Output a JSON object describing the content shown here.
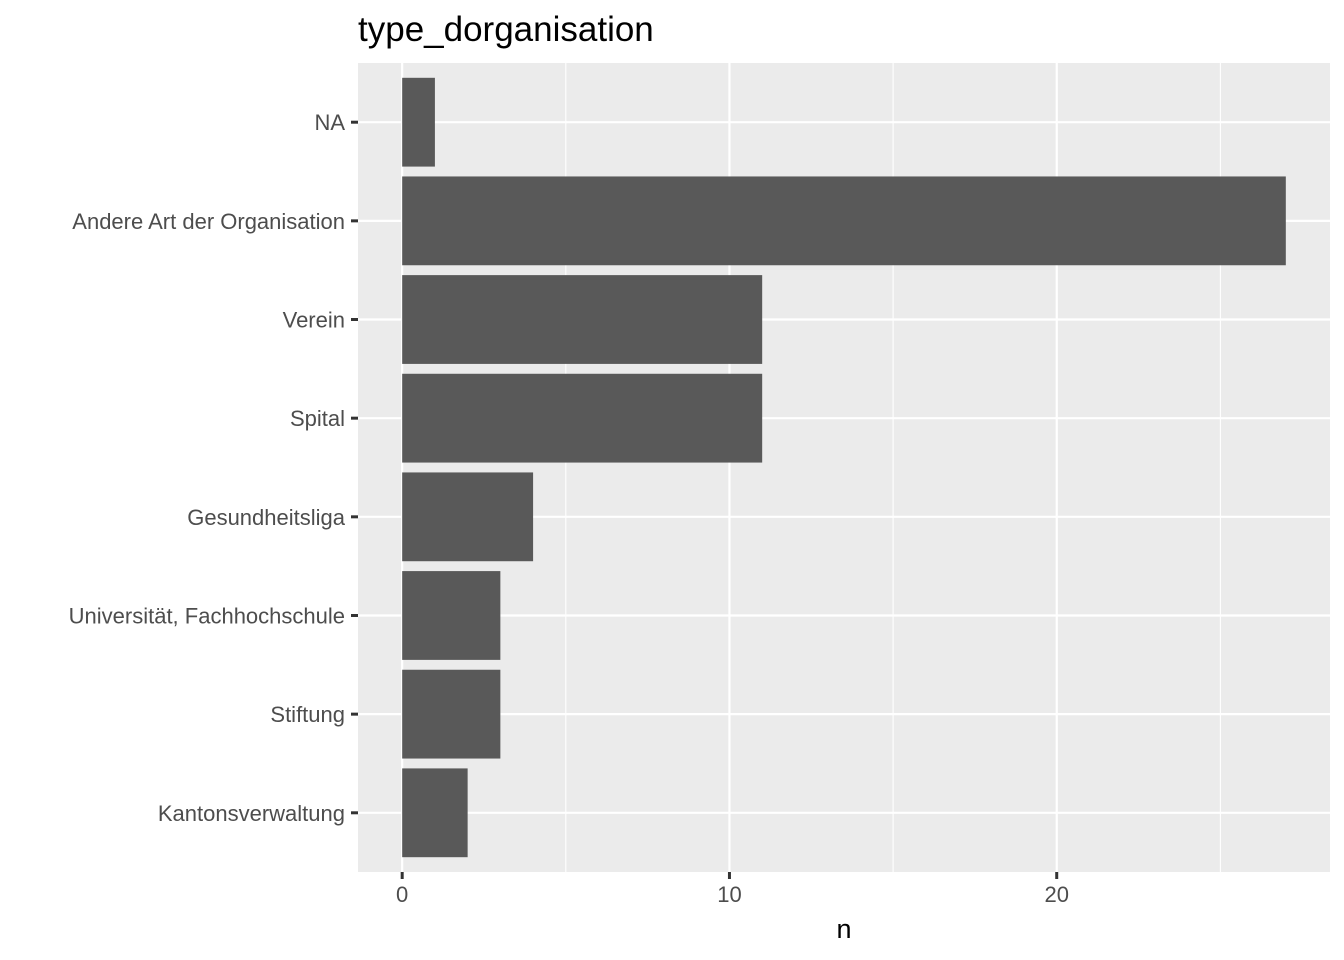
{
  "chart_data": {
    "type": "bar",
    "orientation": "horizontal",
    "title": "type_dorganisation",
    "xlabel": "n",
    "ylabel": "",
    "categories": [
      "NA",
      "Andere Art der Organisation",
      "Verein",
      "Spital",
      "Gesundheitsliga",
      "Universität, Fachhochschule",
      "Stiftung",
      "Kantonsverwaltung"
    ],
    "values": [
      1,
      27,
      11,
      11,
      4,
      3,
      3,
      2
    ],
    "xlim": [
      -1.35,
      28.35
    ],
    "x_ticks": [
      0,
      10,
      20
    ],
    "x_tick_labels": [
      "0",
      "10",
      "20"
    ],
    "x_minor_ticks": [
      5,
      15,
      25
    ],
    "grid": true,
    "colors": {
      "panel_background": "#ebebeb",
      "bar_fill": "#595959",
      "grid": "#ffffff",
      "tick_label": "#4d4d4d"
    }
  }
}
